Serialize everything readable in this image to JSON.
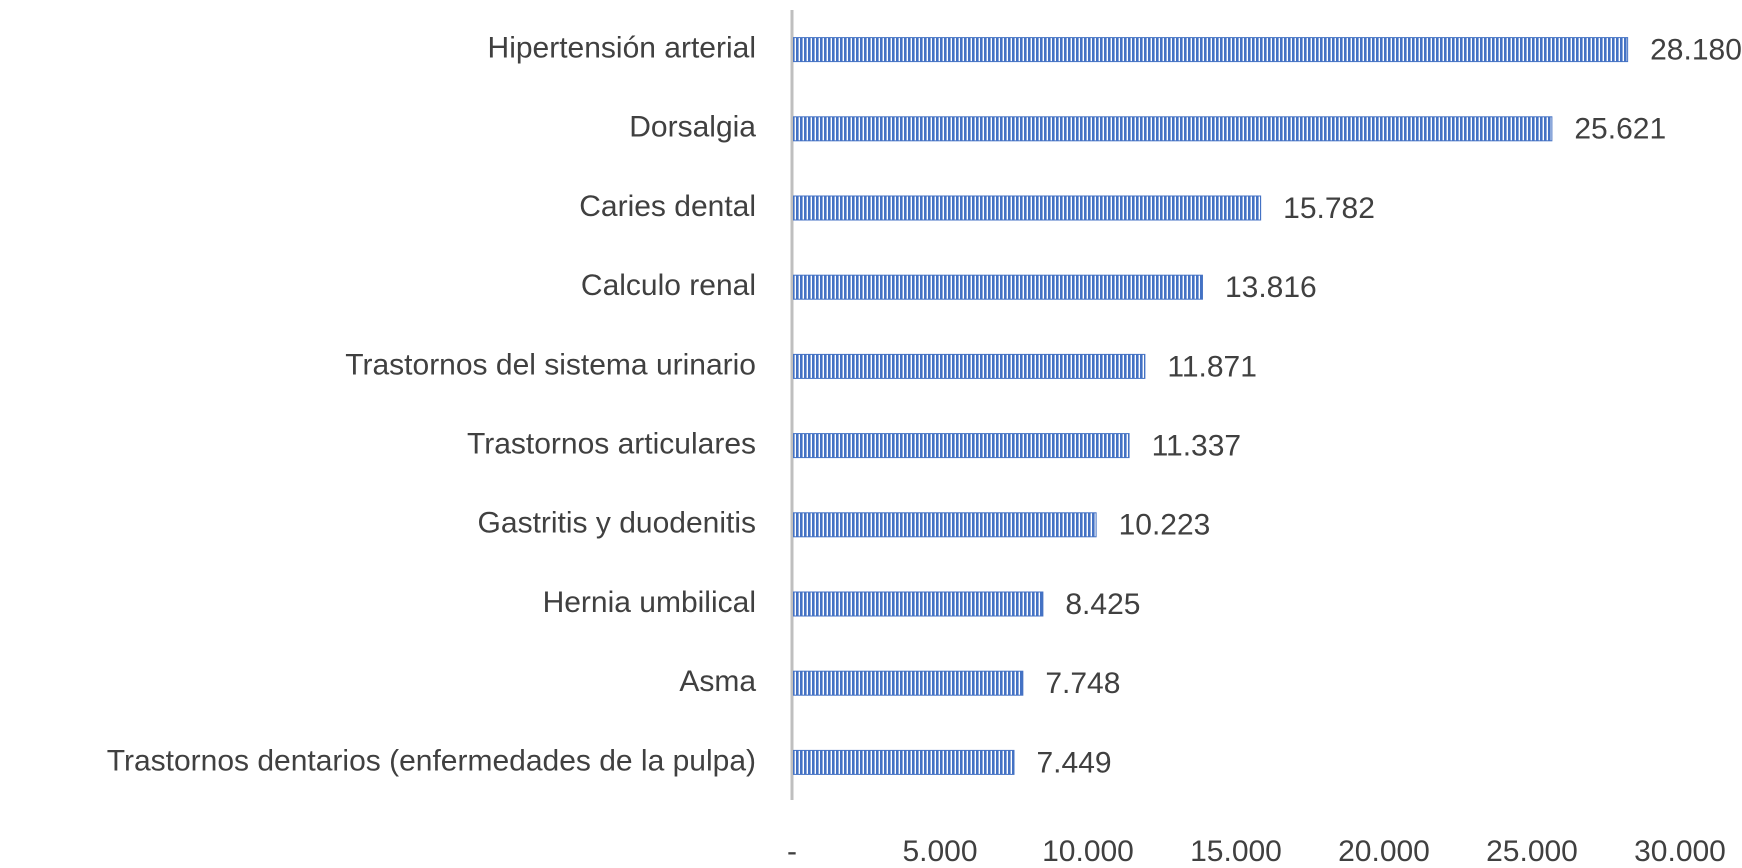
{
  "chart_data": {
    "type": "bar",
    "orientation": "horizontal",
    "categories": [
      "Hipertensión arterial",
      "Dorsalgia",
      "Caries dental",
      "Calculo renal",
      "Trastornos del sistema urinario",
      "Trastornos articulares",
      "Gastritis y duodenitis",
      "Hernia umbilical",
      "Asma",
      "Trastornos dentarios (enfermedades de la pulpa)"
    ],
    "values": [
      28180,
      25621,
      15782,
      13816,
      11871,
      11337,
      10223,
      8425,
      7748,
      7449
    ],
    "value_labels": [
      "28.180",
      "25.621",
      "15.782",
      "13.816",
      "11.871",
      "11.337",
      "10.223",
      "8.425",
      "7.748",
      "7.449"
    ],
    "color": "#4472c4",
    "xlim": [
      0,
      30000
    ],
    "xticks": [
      {
        "value": 0,
        "label": "-"
      },
      {
        "value": 5000,
        "label": "5.000"
      },
      {
        "value": 10000,
        "label": "10.000"
      },
      {
        "value": 15000,
        "label": "15.000"
      },
      {
        "value": 20000,
        "label": "20.000"
      },
      {
        "value": 25000,
        "label": "25.000"
      },
      {
        "value": 30000,
        "label": "30.000"
      }
    ],
    "grid": false
  }
}
